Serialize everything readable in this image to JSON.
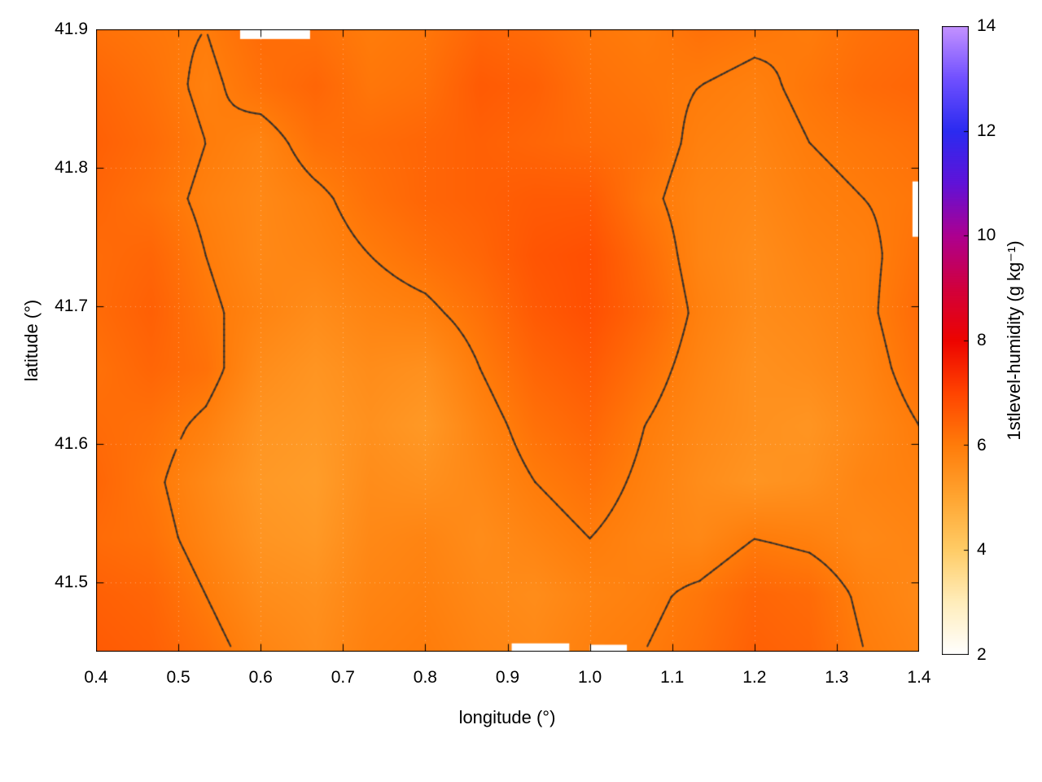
{
  "chart_data": {
    "type": "heatmap",
    "title": "",
    "xlabel": "longitude (°)",
    "ylabel": "latitude (°)",
    "colorbar_label": "1stlevel-humidity (g kg⁻¹)",
    "x_range": [
      0.4,
      1.4
    ],
    "y_range": [
      41.45,
      41.9
    ],
    "x_ticks": [
      "0.4",
      "0.5",
      "0.6",
      "0.7",
      "0.8",
      "0.9",
      "1.0",
      "1.1",
      "1.2",
      "1.3",
      "1.4"
    ],
    "x_tick_values": [
      0.4,
      0.5,
      0.6,
      0.7,
      0.8,
      0.9,
      1.0,
      1.1,
      1.2,
      1.3,
      1.4
    ],
    "y_ticks": [
      "41.5",
      "41.6",
      "41.7",
      "41.8",
      "41.9"
    ],
    "y_tick_values": [
      41.5,
      41.6,
      41.7,
      41.8,
      41.9
    ],
    "colorbar_range": [
      2,
      14
    ],
    "colorbar_ticks": [
      "2",
      "4",
      "6",
      "8",
      "10",
      "12",
      "14"
    ],
    "colorbar_tick_values": [
      2,
      4,
      6,
      8,
      10,
      12,
      14
    ],
    "colormap": [
      {
        "value": 2,
        "color": "#ffffff"
      },
      {
        "value": 3,
        "color": "#ffedbb"
      },
      {
        "value": 4,
        "color": "#ffcc66"
      },
      {
        "value": 5,
        "color": "#ffa531"
      },
      {
        "value": 6,
        "color": "#ff7c0a"
      },
      {
        "value": 7,
        "color": "#ff4400"
      },
      {
        "value": 8,
        "color": "#ed0400"
      },
      {
        "value": 9,
        "color": "#d1003d"
      },
      {
        "value": 10,
        "color": "#ad0090"
      },
      {
        "value": 11,
        "color": "#6012d8"
      },
      {
        "value": 12,
        "color": "#2b2bf0"
      },
      {
        "value": 13,
        "color": "#7050ff"
      },
      {
        "value": 14,
        "color": "#c492ff"
      }
    ],
    "contour_levels": [
      6.0
    ],
    "contour_color": "rgba(45,45,45,0.85)",
    "grid_note": "values in g/kg, row-major; first row = lat 41.9 (north/top), last row = lat 41.45; columns lon 0.4 -> 1.4",
    "values": [
      [
        6.2,
        6.1,
        6.0,
        6.3,
        6.2,
        6.0,
        6.1,
        6.4,
        6.3,
        6.1,
        6.0,
        6.2,
        6.1,
        6.0,
        6.2,
        6.3
      ],
      [
        6.4,
        6.2,
        5.9,
        6.2,
        6.4,
        6.1,
        6.2,
        6.6,
        6.5,
        6.2,
        6.1,
        6.0,
        5.9,
        6.1,
        6.3,
        6.4
      ],
      [
        6.5,
        6.3,
        6.0,
        5.8,
        6.2,
        6.3,
        6.4,
        6.5,
        6.4,
        6.3,
        6.2,
        5.9,
        5.8,
        6.0,
        6.1,
        6.2
      ],
      [
        6.4,
        6.2,
        5.9,
        5.7,
        5.9,
        6.2,
        6.4,
        6.5,
        6.6,
        6.6,
        6.1,
        5.8,
        5.7,
        5.9,
        6.0,
        6.1
      ],
      [
        6.3,
        6.4,
        6.0,
        5.7,
        5.8,
        6.0,
        6.2,
        6.4,
        6.7,
        6.8,
        6.3,
        5.8,
        5.6,
        5.8,
        5.9,
        6.2
      ],
      [
        6.3,
        6.5,
        6.1,
        5.8,
        5.6,
        5.8,
        5.9,
        6.2,
        6.6,
        6.8,
        6.4,
        5.9,
        5.6,
        5.7,
        5.9,
        6.3
      ],
      [
        6.2,
        6.4,
        6.2,
        5.6,
        5.4,
        5.6,
        5.5,
        6.0,
        6.4,
        6.6,
        6.2,
        5.8,
        5.5,
        5.6,
        5.8,
        6.2
      ],
      [
        6.3,
        6.2,
        5.9,
        5.4,
        5.3,
        5.5,
        5.3,
        5.8,
        6.2,
        6.4,
        6.0,
        5.7,
        5.5,
        5.4,
        5.7,
        6.0
      ],
      [
        6.4,
        6.1,
        5.7,
        5.3,
        5.2,
        5.6,
        5.5,
        5.7,
        6.0,
        6.2,
        5.9,
        5.6,
        5.4,
        5.5,
        5.8,
        5.9
      ],
      [
        6.3,
        6.2,
        5.8,
        5.4,
        5.3,
        5.7,
        5.8,
        5.6,
        5.8,
        6.0,
        5.8,
        5.7,
        6.0,
        5.9,
        5.7,
        5.8
      ],
      [
        6.5,
        6.4,
        6.0,
        5.6,
        5.5,
        5.8,
        5.9,
        5.7,
        5.6,
        5.8,
        5.9,
        6.1,
        6.4,
        6.3,
        5.9,
        5.7
      ],
      [
        6.6,
        6.5,
        6.2,
        5.8,
        5.6,
        5.9,
        6.0,
        5.8,
        5.7,
        5.9,
        6.0,
        6.2,
        6.5,
        6.4,
        6.0,
        5.8
      ]
    ],
    "masked_regions": [
      {
        "lon": [
          0.575,
          0.66
        ],
        "lat": [
          41.893,
          41.9
        ]
      },
      {
        "lon": [
          1.392,
          1.4
        ],
        "lat": [
          41.75,
          41.79
        ]
      },
      {
        "lon": [
          0.905,
          0.975
        ],
        "lat": [
          41.45,
          41.456
        ]
      },
      {
        "lon": [
          1.0,
          1.045
        ],
        "lat": [
          41.45,
          41.455
        ]
      }
    ]
  }
}
